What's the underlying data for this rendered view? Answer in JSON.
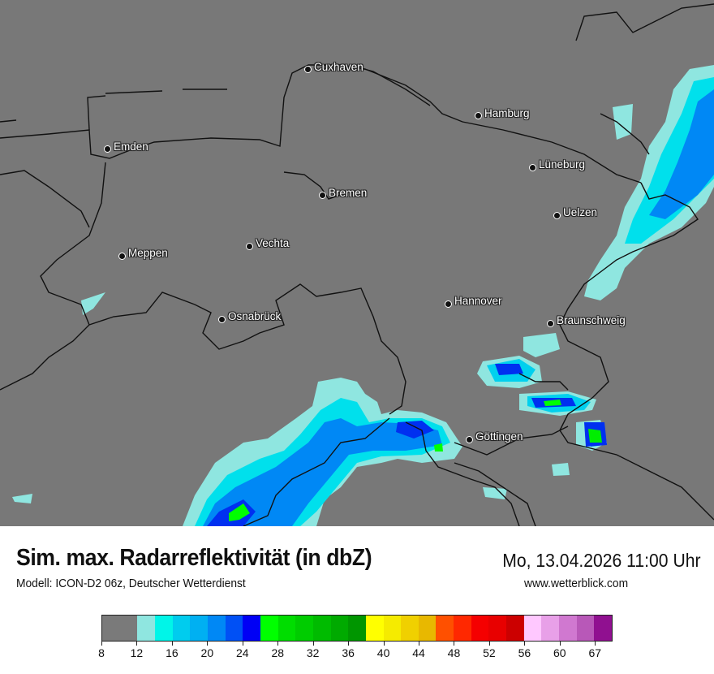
{
  "header": {
    "title": "Sim. max. Radarreflektivität (in dbZ)",
    "subtitle": "Modell: ICON-D2 06z, Deutscher Wetterdienst",
    "datetime": "Mo, 13.04.2026 11:00 Uhr",
    "website": "www.wetterblick.com"
  },
  "map": {
    "background_color": "#787878",
    "border_color": "#111111",
    "cities": [
      "Cuxhaven",
      "Hamburg",
      "Emden",
      "Lüneburg",
      "Bremen",
      "Uelzen",
      "Vechta",
      "Meppen",
      "Hannover",
      "Osnabrück",
      "Braunschweig",
      "Göttingen"
    ]
  },
  "legend": {
    "unit": "dBZ",
    "tick_labels": [
      "8",
      "12",
      "16",
      "20",
      "24",
      "28",
      "32",
      "36",
      "40",
      "44",
      "48",
      "52",
      "56",
      "60",
      "67"
    ],
    "colors": [
      "#7a7a7a",
      "#7a7a7a",
      "#8fe6e0",
      "#00f5e8",
      "#00ccee",
      "#00b0f2",
      "#0088f5",
      "#0050f5",
      "#0000f5",
      "#00ff00",
      "#00dd00",
      "#00cc00",
      "#00bb00",
      "#00aa00",
      "#009600",
      "#ffff00",
      "#f5eb00",
      "#f0d000",
      "#e8b800",
      "#ff5000",
      "#ff2800",
      "#f50000",
      "#e80000",
      "#cc0000",
      "#ffc8ff",
      "#e8a0e8",
      "#d078d0",
      "#b858b8",
      "#901090"
    ]
  }
}
